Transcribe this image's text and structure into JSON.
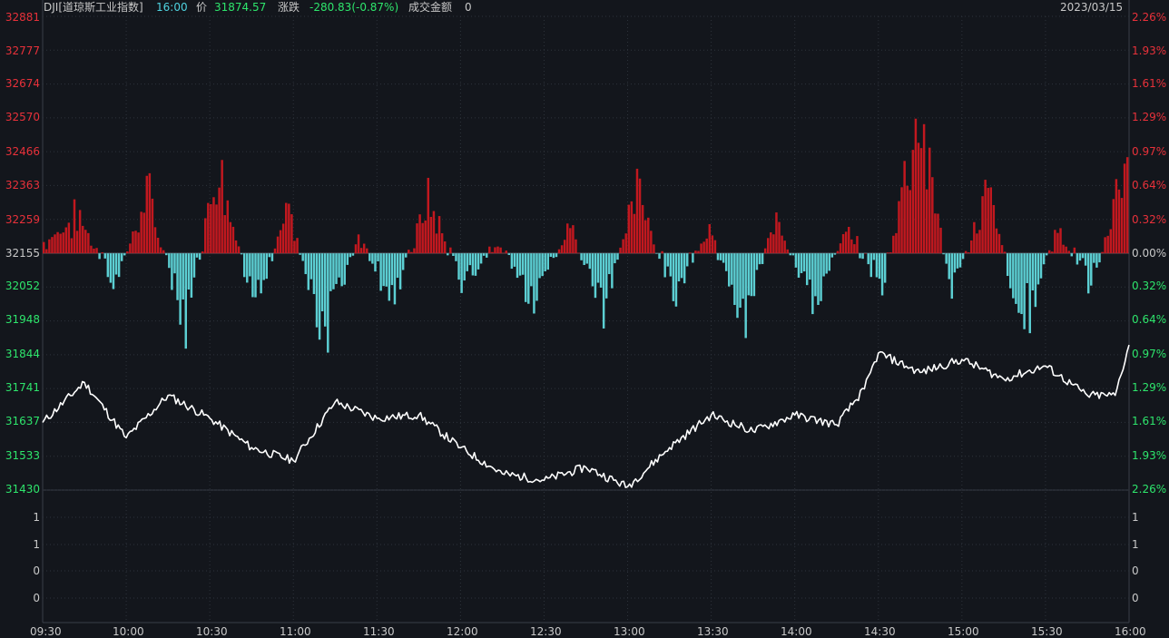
{
  "header": {
    "symbol": "DJI[道琼斯工业指数]",
    "time": "16:00",
    "price_label": "价",
    "price": "31874.57",
    "change_label": "涨跌",
    "change": "-280.83(-0.87%)",
    "amount_label": "成交金额",
    "amount": "0",
    "date": "2023/03/15"
  },
  "price_axis": {
    "labels": [
      "32881",
      "32777",
      "32674",
      "32570",
      "32466",
      "32363",
      "32259",
      "32155",
      "32052",
      "31948",
      "31844",
      "31741",
      "31637",
      "31533",
      "31430"
    ],
    "base_label": "32155"
  },
  "pct_axis": {
    "labels": [
      "2.26%",
      "1.93%",
      "1.61%",
      "1.29%",
      "0.97%",
      "0.64%",
      "0.32%",
      "0.00%",
      "0.32%",
      "0.64%",
      "0.97%",
      "1.29%",
      "1.61%",
      "1.93%",
      "2.26%"
    ]
  },
  "volume_axis": {
    "labels": [
      "1",
      "1",
      "0",
      "0"
    ]
  },
  "time_axis": {
    "labels": [
      "09:30",
      "10:00",
      "10:30",
      "11:00",
      "11:30",
      "12:00",
      "12:30",
      "13:00",
      "13:30",
      "14:00",
      "14:30",
      "15:00",
      "15:30",
      "16:00"
    ]
  },
  "colors": {
    "background": "#13161c",
    "up": "#e8313a",
    "down": "#2ee56c",
    "neutral": "#c8c8c8",
    "accent_cyan": "#4fd3e0",
    "bar_up": "#c2181f",
    "bar_down": "#5ccfd3",
    "price_line": "#ffffff",
    "grid": "#2e333b"
  },
  "chart_data": {
    "type": "line",
    "x": [
      "09:30",
      "09:45",
      "10:00",
      "10:15",
      "10:30",
      "10:45",
      "11:00",
      "11:15",
      "11:30",
      "11:45",
      "12:00",
      "12:15",
      "12:30",
      "12:45",
      "13:00",
      "13:15",
      "13:30",
      "13:45",
      "14:00",
      "14:15",
      "14:25",
      "14:30",
      "14:45",
      "15:00",
      "15:15",
      "15:30",
      "15:45",
      "15:55",
      "16:00"
    ],
    "series": [
      {
        "values": [
          31637,
          31760,
          31590,
          31720,
          31650,
          31560,
          31520,
          31700,
          31650,
          31660,
          31560,
          31480,
          31460,
          31500,
          31440,
          31560,
          31660,
          31610,
          31660,
          31630,
          31740,
          31850,
          31790,
          31830,
          31770,
          31810,
          31720,
          31720,
          31874.57
        ]
      }
    ],
    "ylim": [
      31430,
      32881
    ],
    "baseline": 32155,
    "bars": {
      "sample_values_pct": [
        0.1,
        0.35,
        -0.3,
        0.55,
        -0.75,
        0.9,
        -0.6,
        0.4,
        -0.8,
        0.2,
        -0.45,
        0.5,
        -0.3,
        0.15,
        -0.5,
        0.3,
        -0.55,
        0.6,
        -0.4,
        0.25,
        -0.6,
        0.35,
        -0.5,
        0.2,
        -0.3,
        1.35,
        -0.4,
        0.6,
        -0.7,
        0.25,
        -0.3,
        0.95
      ],
      "ylim_pct": [
        -2.26,
        2.26
      ]
    },
    "xlabel": "",
    "ylabel": "",
    "grid": true
  }
}
